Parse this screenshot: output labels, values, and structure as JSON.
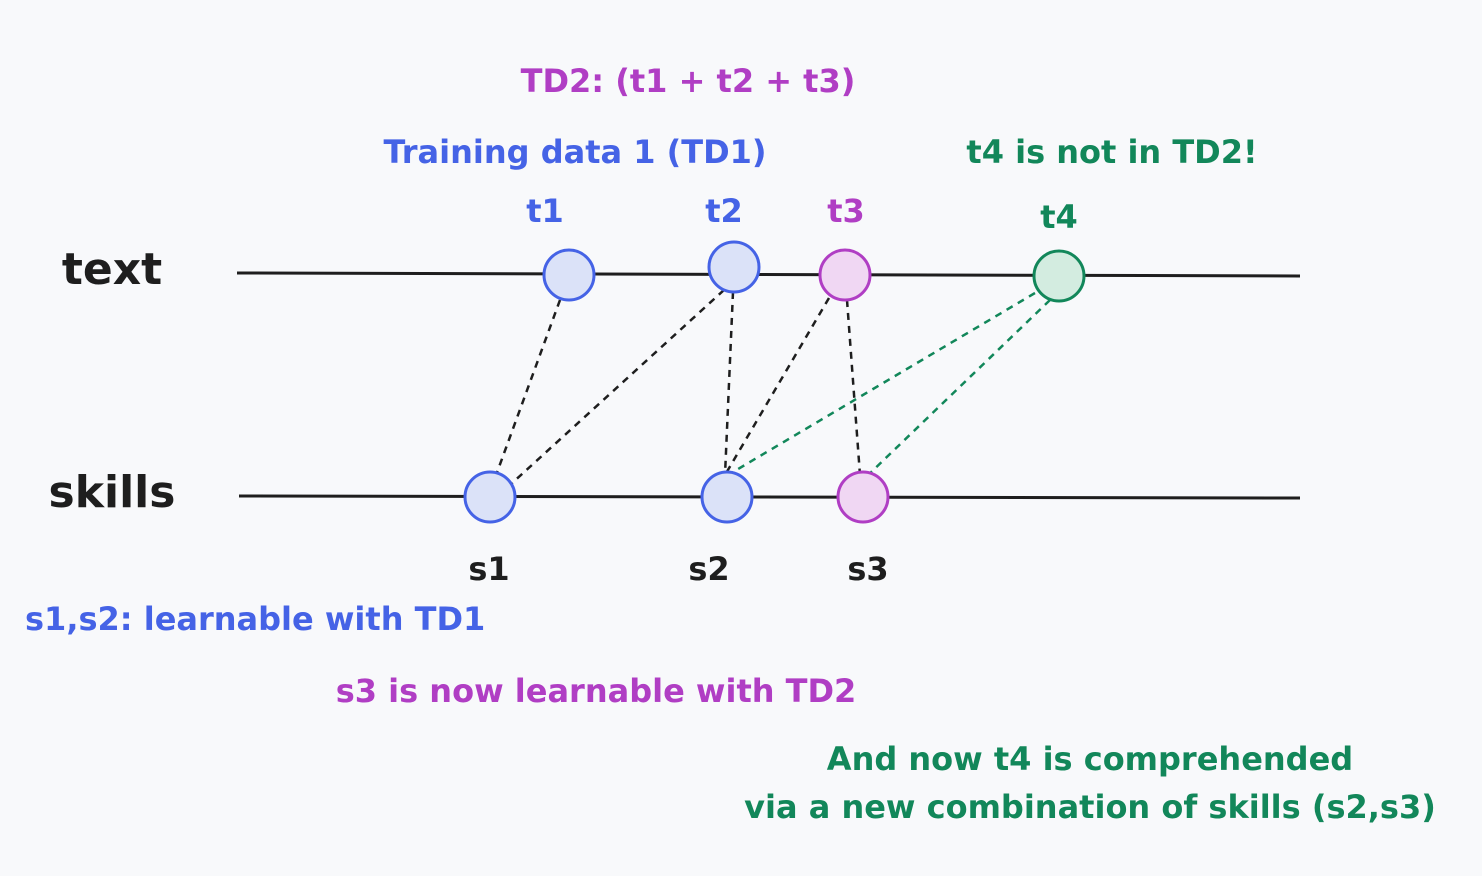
{
  "annotations": {
    "td2": "TD2: (t1 + t2 + t3)",
    "td1": "Training data 1 (TD1)",
    "t4_note": "t4 is not in TD2!",
    "s12_note": "s1,s2: learnable with TD1",
    "s3_note": "s3 is now learnable with TD2",
    "comprehend_1": "And now t4 is comprehended",
    "comprehend_2": "via a new combination of skills (s2,s3)"
  },
  "rows": {
    "text": "text",
    "skills": "skills"
  },
  "nodes": [
    {
      "label": "t1"
    },
    {
      "label": "t2"
    },
    {
      "label": "t3"
    },
    {
      "label": "t4"
    },
    {
      "label": "s1"
    },
    {
      "label": "s2"
    },
    {
      "label": "s3"
    }
  ]
}
